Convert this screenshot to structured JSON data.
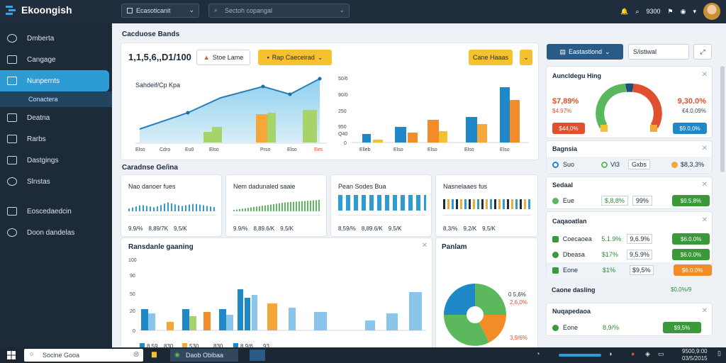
{
  "app": {
    "title": "Ekoongish"
  },
  "topbar": {
    "select_label": "Ecasoticanit",
    "search_placeholder": "Sectoh copangal",
    "clock": "9300"
  },
  "sidebar": {
    "items": [
      {
        "label": "Dmberta",
        "icon": "settings-icon"
      },
      {
        "label": "Cangage",
        "icon": "pen-icon"
      },
      {
        "label": "Nunpernts",
        "icon": "chart-icon",
        "active": true
      },
      {
        "label": "Conactera",
        "sub": true
      },
      {
        "label": "Deatna",
        "icon": "folder-icon"
      },
      {
        "label": "Rarbs",
        "icon": "bar-icon"
      },
      {
        "label": "Dastgings",
        "icon": "document-icon"
      },
      {
        "label": "Slnstas",
        "icon": "share-icon"
      },
      {
        "label": "Eoscedaedcin",
        "icon": "box-icon"
      },
      {
        "label": "Doon dandelas",
        "icon": "gear-icon"
      }
    ]
  },
  "main": {
    "section1_title": "Cacduose Bands",
    "section2_title": "Caradnse Ge/ina",
    "main_card": {
      "value": "1,1,5,6,,D1/100",
      "filter_btn": "Stoe Lame",
      "dropdown_btn": "Rap Caeceirad",
      "action_btn": "Cane Haaas",
      "chart_label": "Sahdeif/Cp Kpa",
      "line_x": [
        "Elso",
        "Cdro",
        "Eu0",
        "Elso",
        "Prso",
        "Elso",
        "Ees"
      ],
      "bar_y": [
        "50/6",
        "90/0",
        "250",
        "950",
        "Q40",
        "0"
      ],
      "bar_x": [
        "Elleb",
        "Elso",
        "Elso",
        "Elso",
        "Elso"
      ]
    },
    "mini_cards": [
      {
        "title": "Nao danoer fues",
        "stats": [
          "9.9/%",
          "8,89/7K",
          "9,5/K"
        ]
      },
      {
        "title": "Nem dadunaled saaie",
        "stats": [
          "9.9/%",
          "8,89.6/K",
          "9,5/K"
        ]
      },
      {
        "title": "Pean Sodes Bua",
        "stats": [
          "8,59/%",
          "8,89.6/K",
          "9,5/K"
        ]
      },
      {
        "title": "Nasnelaaes fus",
        "stats": [
          "8,3/%",
          "9,2/K",
          "9,5/K"
        ]
      }
    ],
    "bottom_card": {
      "title": "Ransdanle gaaning",
      "y_ticks": [
        "100",
        "90",
        "50",
        "20",
        "0"
      ],
      "legend": [
        "8,59",
        "830",
        "530",
        "8,9/6",
        "93"
      ]
    },
    "pie_card": {
      "title": "Panlam",
      "label1": "0 5,6%",
      "label2": "2,6,0%",
      "label3": "3,9/6%"
    }
  },
  "right": {
    "select_label": "Eastastlond",
    "input_value": "S/istiwal",
    "gauge_card": {
      "title": "Auncldegu Hing",
      "left_value": "$7,89%",
      "left_sub": "$4.97%",
      "right_value": "9,30.0%",
      "right_sub": "€4.0,09%",
      "left_btn": "$44,0%",
      "right_btn": "$9.0,0%"
    },
    "row1_title": "Bagnsia",
    "row1": [
      "Suo",
      "Vl3",
      "Gxbs",
      "$8,3,3%"
    ],
    "row2_title": "Sedaal",
    "row2": [
      "Eue",
      "$,8,8%",
      "99%",
      "$9.5.8%"
    ],
    "row3_title": "Caqaoatlan",
    "row3": [
      {
        "label": "Coecaoea",
        "v1": "5.1.9%",
        "v2": "9,6.9%",
        "btn": "$6.0.0%"
      },
      {
        "label": "Dbeasa",
        "v1": "$17%",
        "v2": "9,5.9%",
        "btn": "$6.0.0%"
      },
      {
        "label": "Eone",
        "v1": "$1%",
        "v2": "$9,5%",
        "btn": "$6.0.0%"
      }
    ],
    "row4_title": "Caone dasling",
    "row4_value": "$0,0%/9",
    "row5_title": "Nuqapedaoa",
    "row5": [
      "Eone",
      "8,9/%",
      "$9,5%"
    ]
  },
  "taskbar": {
    "search": "Socine Gooa",
    "app_label": "Daob Obibaa",
    "time": "9500,9:00",
    "date": "03/5/2015"
  },
  "colors": {
    "accent": "#2d9bd4",
    "orange": "#f28c28",
    "yellow": "#f5c12e",
    "green": "#5cb85c",
    "red": "#e0502e"
  }
}
